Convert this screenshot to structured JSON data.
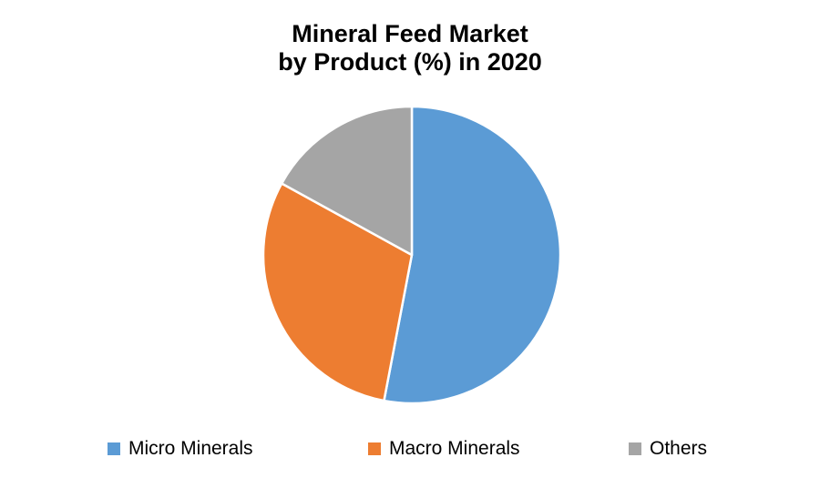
{
  "title": {
    "lines": [
      "Mineral Feed Market",
      "by Product (%) in 2020"
    ]
  },
  "chart_data": {
    "type": "pie",
    "title": "Mineral Feed Market by Product (%) in 2020",
    "categories": [
      "Micro Minerals",
      "Macro Minerals",
      "Others"
    ],
    "values": [
      53,
      30,
      17
    ],
    "unit": "%",
    "year": "2020",
    "colors": [
      "#5B9BD5",
      "#ED7D31",
      "#A5A5A5"
    ],
    "slice_border_color": "#FFFFFF",
    "start_angle_deg": 0,
    "direction": "clockwise",
    "legend_position": "bottom",
    "data_labels": "none"
  }
}
